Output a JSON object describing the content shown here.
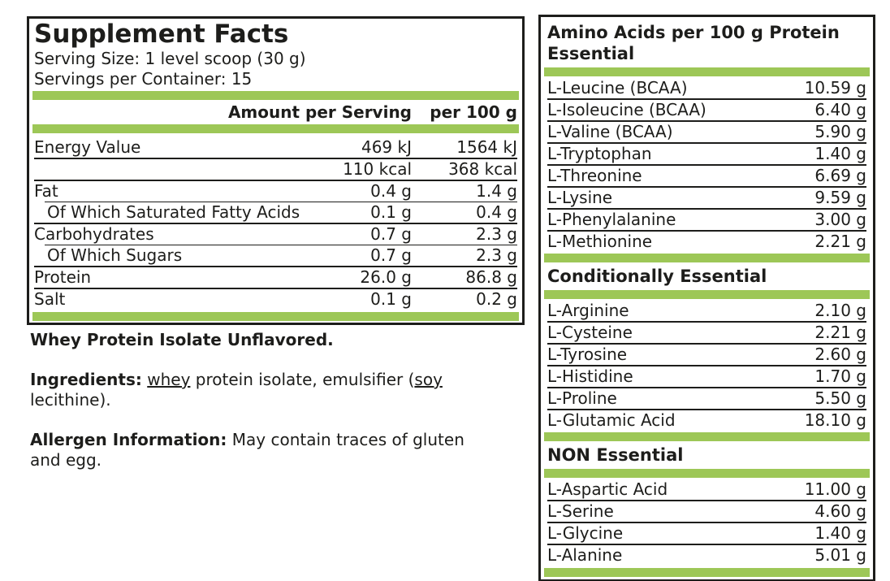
{
  "colors": {
    "accent_green": "#9dc757",
    "text": "#1d1d1b",
    "background": "#ffffff"
  },
  "left_panel": {
    "title": "Supplement Facts",
    "serving_size": "Serving Size: 1 level scoop (30 g)",
    "servings_per_container": "Servings per Container: 15",
    "col_header_amount": "Amount per Serving",
    "col_header_per100": "per 100 g",
    "rows": [
      {
        "label": "Energy Value",
        "per_serving": "469 kJ",
        "per_100g": "1564 kJ"
      },
      {
        "label": "",
        "per_serving": "110 kcal",
        "per_100g": "368 kcal"
      },
      {
        "label": "Fat",
        "per_serving": "0.4 g",
        "per_100g": "1.4 g"
      },
      {
        "label": "Of Which Saturated Fatty Acids",
        "per_serving": "0.1 g",
        "per_100g": "0.4 g"
      },
      {
        "label": "Carbohydrates",
        "per_serving": "0.7 g",
        "per_100g": "2.3 g"
      },
      {
        "label": "Of Which Sugars",
        "per_serving": "0.7 g",
        "per_100g": "2.3 g"
      },
      {
        "label": "Protein",
        "per_serving": "26.0 g",
        "per_100g": "86.8 g"
      },
      {
        "label": "Salt",
        "per_serving": "0.1 g",
        "per_100g": "0.2 g"
      }
    ]
  },
  "notes": {
    "product_name": "Whey Protein Isolate Unflavored.",
    "ingredients_label": "Ingredients:",
    "ingredients_u1": "whey",
    "ingredients_mid": "protein isolate, emulsifier (",
    "ingredients_u2": "soy",
    "ingredients_end": "lecithine).",
    "allergen_label": "Allergen Information:",
    "allergen_text": "May contain traces of gluten and egg."
  },
  "right_panel": {
    "sections": [
      {
        "title_line1": "Amino Acids per 100 g Protein",
        "title_line2": "Essential",
        "rows": [
          {
            "label": "L-Leucine (BCAA)",
            "value": "10.59 g"
          },
          {
            "label": "L-Isoleucine (BCAA)",
            "value": "6.40 g"
          },
          {
            "label": "L-Valine (BCAA)",
            "value": "5.90 g"
          },
          {
            "label": "L-Tryptophan",
            "value": "1.40 g"
          },
          {
            "label": "L-Threonine",
            "value": "6.69 g"
          },
          {
            "label": "L-Lysine",
            "value": "9.59 g"
          },
          {
            "label": "L-Phenylalanine",
            "value": "3.00 g"
          },
          {
            "label": "L-Methionine",
            "value": "2.21 g"
          }
        ]
      },
      {
        "title_line1": "Conditionally Essential",
        "rows": [
          {
            "label": "L-Arginine",
            "value": "2.10 g"
          },
          {
            "label": "L-Cysteine",
            "value": "2.21 g"
          },
          {
            "label": "L-Tyrosine",
            "value": "2.60 g"
          },
          {
            "label": "L-Histidine",
            "value": "1.70 g"
          },
          {
            "label": "L-Proline",
            "value": "5.50 g"
          },
          {
            "label": "L-Glutamic Acid",
            "value": "18.10 g"
          }
        ]
      },
      {
        "title_line1": "NON Essential",
        "rows": [
          {
            "label": "L-Aspartic Acid",
            "value": "11.00 g"
          },
          {
            "label": "L-Serine",
            "value": "4.60 g"
          },
          {
            "label": "L-Glycine",
            "value": "1.40 g"
          },
          {
            "label": "L-Alanine",
            "value": "5.01 g"
          }
        ]
      }
    ]
  }
}
